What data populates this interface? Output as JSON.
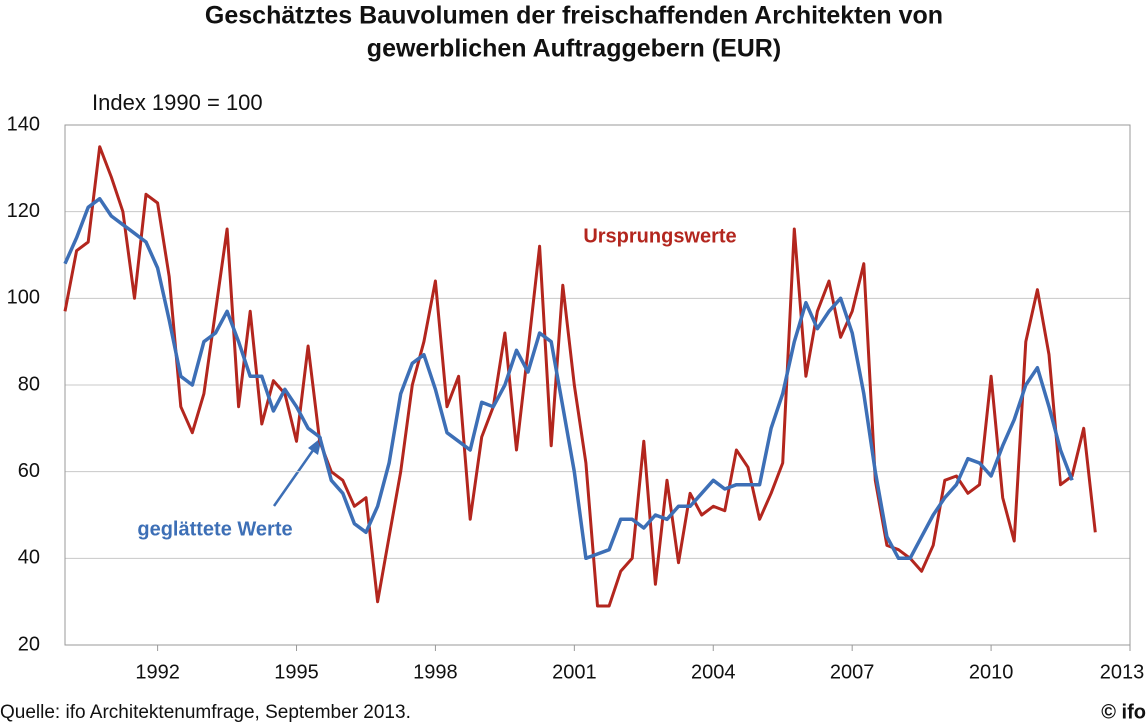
{
  "chart_data": {
    "type": "line",
    "title": [
      "Geschätztes Bauvolumen der freischaffenden Architekten von",
      "gewerblichen Auftraggebern (EUR)"
    ],
    "subtitle": "Index 1990 = 100",
    "source": "Quelle: ifo Architektenumfrage, September 2013.",
    "copyright": "© ifo",
    "annotations": [
      "Ursprungswerte",
      "geglättete Werte"
    ],
    "x": [
      1990,
      1990.25,
      1990.5,
      1990.75,
      1991,
      1991.25,
      1991.5,
      1991.75,
      1992,
      1992.25,
      1992.5,
      1992.75,
      1993,
      1993.25,
      1993.5,
      1993.75,
      1994,
      1994.25,
      1994.5,
      1994.75,
      1995,
      1995.25,
      1995.5,
      1995.75,
      1996,
      1996.25,
      1996.5,
      1996.75,
      1997,
      1997.25,
      1997.5,
      1997.75,
      1998,
      1998.25,
      1998.5,
      1998.75,
      1999,
      1999.25,
      1999.5,
      1999.75,
      2000,
      2000.25,
      2000.5,
      2000.75,
      2001,
      2001.25,
      2001.5,
      2001.75,
      2002,
      2002.25,
      2002.5,
      2002.75,
      2003,
      2003.25,
      2003.5,
      2003.75,
      2004,
      2004.25,
      2004.5,
      2004.75,
      2005,
      2005.25,
      2005.5,
      2005.75,
      2006,
      2006.25,
      2006.5,
      2006.75,
      2007,
      2007.25,
      2007.5,
      2007.75,
      2008,
      2008.25,
      2008.5,
      2008.75,
      2009,
      2009.25,
      2009.5,
      2009.75,
      2010,
      2010.25,
      2010.5,
      2010.75,
      2011,
      2011.25,
      2011.5,
      2011.75,
      2012,
      2012.25
    ],
    "series": [
      {
        "name": "Ursprungswerte",
        "color": "#b3261e",
        "values": [
          97,
          111,
          113,
          135,
          128,
          120,
          100,
          124,
          122,
          105,
          75,
          69,
          78,
          97,
          116,
          75,
          97,
          71,
          81,
          78,
          67,
          89,
          67,
          60,
          58,
          52,
          54,
          30,
          45,
          60,
          80,
          90,
          104,
          75,
          82,
          49,
          68,
          75,
          92,
          65,
          88,
          112,
          66,
          103,
          80,
          62,
          29,
          29,
          37,
          40,
          67,
          34,
          58,
          39,
          55,
          50,
          52,
          51,
          65,
          61,
          49,
          55,
          62,
          116,
          82,
          97,
          104,
          91,
          97,
          108,
          58,
          43,
          42,
          40,
          37,
          43,
          58,
          59,
          55,
          57,
          82,
          54,
          44,
          90,
          102,
          87,
          57,
          59,
          70,
          46
        ]
      },
      {
        "name": "geglättete Werte",
        "color": "#3d6fb6",
        "values": [
          108,
          114,
          121,
          123,
          119,
          117,
          115,
          113,
          107,
          95,
          82,
          80,
          90,
          92,
          97,
          90,
          82,
          82,
          74,
          79,
          75,
          70,
          68,
          58,
          55,
          48,
          46,
          52,
          62,
          78,
          85,
          87,
          79,
          69,
          67,
          65,
          76,
          75,
          80,
          88,
          83,
          92,
          90,
          75,
          60,
          40,
          41,
          42,
          49,
          49,
          47,
          50,
          49,
          52,
          52,
          55,
          58,
          56,
          57,
          57,
          57,
          70,
          78,
          90,
          99,
          93,
          97,
          100,
          92,
          78,
          60,
          45,
          40,
          40,
          45,
          50,
          54,
          57,
          63,
          62,
          59,
          66,
          72,
          80,
          84,
          75,
          65,
          58,
          null,
          null
        ]
      }
    ],
    "xlim": [
      1990,
      2013
    ],
    "xticks": [
      1992,
      1995,
      1998,
      2001,
      2004,
      2007,
      2010,
      2013
    ],
    "ylim": [
      20,
      140
    ],
    "yticks": [
      20,
      40,
      60,
      80,
      100,
      120,
      140
    ],
    "grid": true
  }
}
